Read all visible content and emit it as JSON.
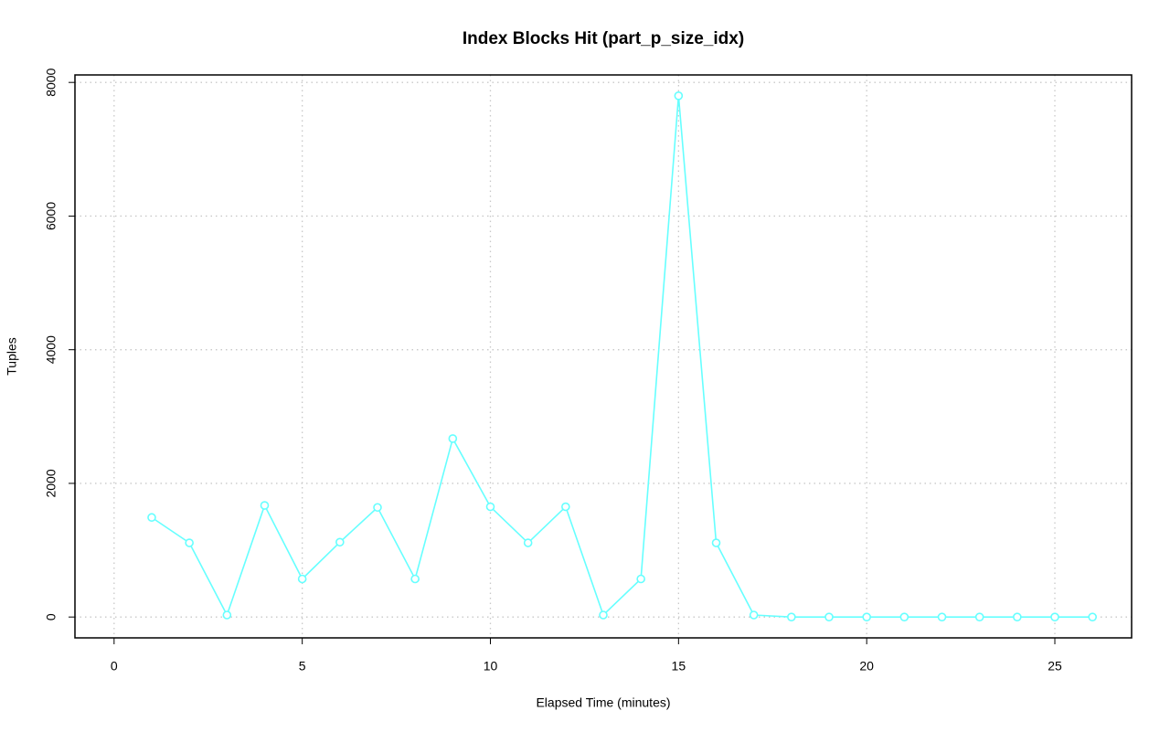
{
  "chart_data": {
    "type": "line",
    "title": "Index Blocks Hit (part_p_size_idx)",
    "x_label": "Elapsed Time (minutes)",
    "y_label": "Tuples",
    "x": [
      1,
      2,
      3,
      4,
      5,
      6,
      7,
      8,
      9,
      10,
      11,
      12,
      13,
      14,
      15,
      16,
      17,
      18,
      19,
      20,
      21,
      22,
      23,
      24,
      25,
      26
    ],
    "values": [
      1490,
      1110,
      30,
      1670,
      570,
      1120,
      1640,
      570,
      2670,
      1650,
      1110,
      1650,
      30,
      570,
      7800,
      1110,
      30,
      0,
      0,
      0,
      0,
      0,
      0,
      0,
      0,
      0
    ],
    "color": "#66ffff",
    "xlim": [
      -1.04,
      27.04
    ],
    "xticks": [
      0,
      5,
      10,
      15,
      20,
      25
    ],
    "ylim": [
      -312,
      8112
    ],
    "yticks": [
      0,
      2000,
      4000,
      6000,
      8000
    ],
    "grid": true
  }
}
